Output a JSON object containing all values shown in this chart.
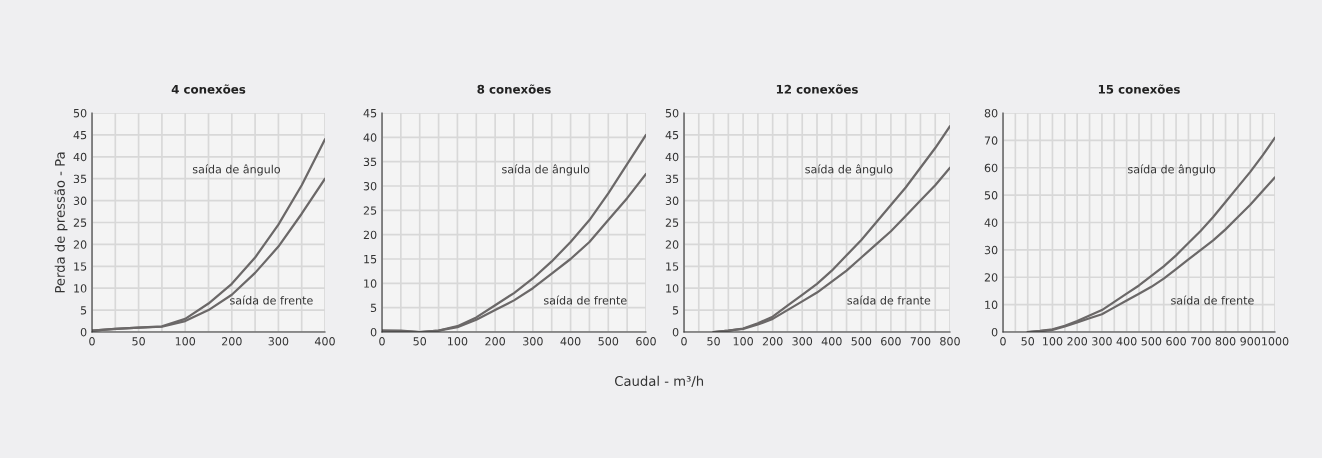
{
  "chart_data": [
    {
      "type": "line",
      "title": "4 conexões",
      "ylabel": "Perda de pressão - Pa",
      "categories": [
        "0",
        null,
        "50",
        null,
        "100",
        null,
        "200",
        null,
        "300",
        null,
        "400"
      ],
      "ylim": [
        0,
        50
      ],
      "yticks": [
        0,
        5,
        10,
        15,
        20,
        25,
        30,
        35,
        40,
        45,
        50
      ],
      "grid": true,
      "series": [
        {
          "color": "#6b6868",
          "values": [
            0.3,
            0.7,
            1,
            1.3,
            3,
            6.5,
            11,
            17,
            24.5,
            33.5,
            44
          ]
        },
        {
          "color": "#6b6868",
          "values": [
            0.3,
            0.7,
            1,
            1.2,
            2.5,
            5,
            8.5,
            13.5,
            19.5,
            27,
            35
          ]
        }
      ],
      "annotations": [
        "saída de ângulo",
        "saída de frente"
      ]
    },
    {
      "type": "line",
      "title": "8 conexões",
      "xlabel": "Caudal - m³/h",
      "categories": [
        "0",
        null,
        "50",
        null,
        "100",
        null,
        "200",
        null,
        "300",
        null,
        "400",
        null,
        "500",
        null,
        "600"
      ],
      "ylim": [
        0,
        45
      ],
      "yticks": [
        0,
        5,
        10,
        15,
        20,
        25,
        30,
        35,
        40,
        45
      ],
      "grid": true,
      "series": [
        {
          "color": "#6b6868",
          "values": [
            0.3,
            0.3,
            0,
            0.3,
            1.2,
            3,
            5.5,
            8,
            11,
            14.5,
            18.5,
            23,
            28.5,
            34.5,
            40.5
          ]
        },
        {
          "color": "#6b6868",
          "values": [
            0.3,
            0.2,
            0,
            0.3,
            1,
            2.5,
            4.5,
            6.5,
            9,
            12,
            15,
            18.5,
            23,
            27.5,
            32.5
          ]
        }
      ],
      "annotations": [
        "saída de ângulo",
        "saída de frente"
      ]
    },
    {
      "type": "line",
      "title": "12 conexões",
      "categories": [
        "0",
        null,
        "50",
        null,
        "100",
        null,
        "200",
        null,
        "300",
        null,
        "400",
        null,
        "500",
        null,
        "600",
        null,
        "700",
        null,
        "800"
      ],
      "ylim": [
        0,
        50
      ],
      "yticks": [
        0,
        5,
        10,
        15,
        20,
        25,
        30,
        35,
        40,
        45,
        50
      ],
      "grid": true,
      "series": [
        {
          "color": "#6b6868",
          "values": [
            null,
            null,
            0,
            0.3,
            0.8,
            2,
            3.5,
            6,
            8.5,
            11,
            14,
            17.5,
            21,
            25,
            29,
            33,
            37.5,
            42,
            47
          ]
        },
        {
          "color": "#6b6868",
          "values": [
            null,
            null,
            0,
            0.3,
            0.7,
            1.7,
            3,
            5,
            7,
            9,
            11.5,
            14,
            17,
            20,
            23,
            26.5,
            30,
            33.5,
            37.5
          ]
        }
      ],
      "annotations": [
        "saída de ângulo",
        "saída de frante"
      ]
    },
    {
      "type": "line",
      "title": "15 conexões",
      "categories": [
        "0",
        null,
        "50",
        null,
        "100",
        null,
        "200",
        null,
        "300",
        null,
        "400",
        null,
        "500",
        null,
        "600",
        null,
        "700",
        null,
        "800",
        null,
        "900",
        null,
        "1000"
      ],
      "ylim": [
        0,
        80
      ],
      "yticks": [
        0,
        10,
        20,
        30,
        40,
        50,
        60,
        70,
        80
      ],
      "grid": true,
      "series": [
        {
          "color": "#6b6868",
          "values": [
            null,
            null,
            0,
            0.4,
            1,
            2.3,
            4,
            6,
            8,
            11,
            14,
            17,
            20.5,
            24,
            28,
            32.5,
            37,
            42,
            47.5,
            53,
            58.5,
            64.5,
            71
          ]
        },
        {
          "color": "#6b6868",
          "values": [
            null,
            null,
            0,
            0.3,
            0.8,
            2,
            3.5,
            5,
            6.5,
            9,
            11.5,
            14,
            16.5,
            19.5,
            23,
            26.5,
            30,
            33.5,
            37.5,
            42,
            46.5,
            51.5,
            56.5
          ]
        }
      ],
      "annotations": [
        "saída de ângulo",
        "saída de frente"
      ]
    }
  ]
}
